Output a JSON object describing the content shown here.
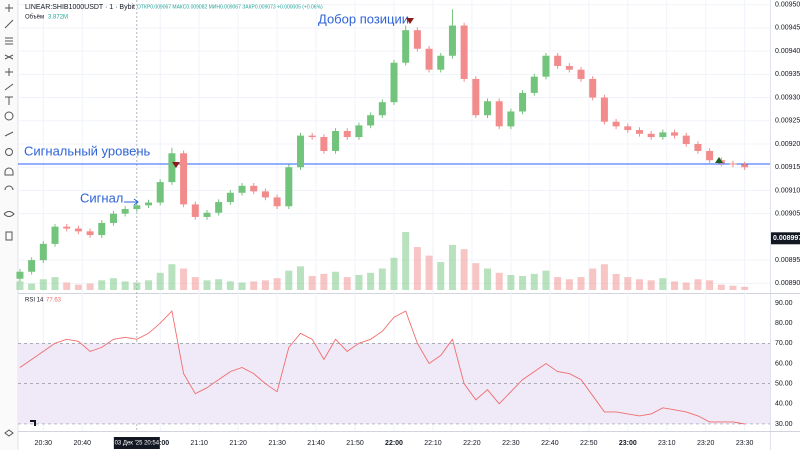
{
  "chart_data": {
    "type": "candlestick",
    "symbol": "LINEAR:SHIB1000USDT · 1 · Bybit",
    "ohlc_text": "ОТКР0.009067 МАКС0.009082 МИН0.009067 ЗАКР0.009073 +0.000005 (+0.06%)",
    "volume_name": "Объём",
    "volume_label": "3.872M",
    "annotations": [
      "Добор позиции",
      "Сигнальный уровень",
      "Сигнал"
    ],
    "signal_level": 0.009157,
    "signal_color": "#2962ff",
    "price_marker": {
      "value": 0.008997,
      "label": "0.008997"
    },
    "crosshair": {
      "value": 1254,
      "label": "03 Дек '25 20:54"
    },
    "up_color": "#72c37b",
    "down_color": "#f28b8b",
    "grid": true,
    "x": [
      1224,
      1227,
      1230,
      1233,
      1236,
      1239,
      1242,
      1245,
      1248,
      1251,
      1254,
      1257,
      1260,
      1263,
      1266,
      1269,
      1272,
      1275,
      1278,
      1281,
      1284,
      1287,
      1290,
      1293,
      1296,
      1299,
      1302,
      1305,
      1308,
      1311,
      1314,
      1317,
      1320,
      1323,
      1326,
      1329,
      1332,
      1335,
      1338,
      1341,
      1344,
      1347,
      1350,
      1353,
      1356,
      1359,
      1362,
      1365,
      1368,
      1371,
      1374,
      1377,
      1380,
      1383,
      1386,
      1389,
      1392,
      1395,
      1398,
      1401,
      1404,
      1407,
      1410
    ],
    "open": [
      0.00891,
      0.008925,
      0.00895,
      0.008985,
      0.009022,
      0.009018,
      0.009012,
      0.009004,
      0.00903,
      0.00905,
      0.00906,
      0.009068,
      0.009074,
      0.009118,
      0.00918,
      0.00907,
      0.009043,
      0.009052,
      0.009075,
      0.009095,
      0.00911,
      0.009098,
      0.009085,
      0.009066,
      0.00915,
      0.009218,
      0.009215,
      0.009185,
      0.009228,
      0.009215,
      0.00924,
      0.009262,
      0.00929,
      0.009375,
      0.009445,
      0.009405,
      0.00936,
      0.00939,
      0.009455,
      0.00934,
      0.009262,
      0.009292,
      0.009238,
      0.00927,
      0.00931,
      0.009345,
      0.00939,
      0.009368,
      0.00936,
      0.00934,
      0.0093,
      0.009248,
      0.009238,
      0.00923,
      0.009222,
      0.009215,
      0.009225,
      0.009218,
      0.0092,
      0.009185,
      0.009165,
      0.009158,
      0.009156
    ],
    "high": [
      0.008931,
      0.008956,
      0.008991,
      0.009028,
      0.009028,
      0.009024,
      0.009018,
      0.009036,
      0.009056,
      0.009066,
      0.009074,
      0.00908,
      0.009124,
      0.009192,
      0.009186,
      0.009076,
      0.009058,
      0.009081,
      0.009101,
      0.009116,
      0.009116,
      0.009104,
      0.009091,
      0.009156,
      0.009224,
      0.009224,
      0.009221,
      0.009234,
      0.009234,
      0.009246,
      0.009268,
      0.009296,
      0.009381,
      0.009455,
      0.009451,
      0.009411,
      0.009396,
      0.00949,
      0.009461,
      0.009346,
      0.009298,
      0.009298,
      0.009276,
      0.009316,
      0.009351,
      0.009396,
      0.009396,
      0.009374,
      0.009366,
      0.009346,
      0.009306,
      0.009254,
      0.009244,
      0.009236,
      0.009228,
      0.009231,
      0.009231,
      0.009224,
      0.009206,
      0.009191,
      0.009171,
      0.009164,
      0.009162
    ],
    "low": [
      0.008904,
      0.008919,
      0.008944,
      0.008979,
      0.009012,
      0.009006,
      0.008998,
      0.008998,
      0.009024,
      0.009044,
      0.009054,
      0.009062,
      0.009068,
      0.009112,
      0.009064,
      0.009037,
      0.009037,
      0.009046,
      0.009069,
      0.009089,
      0.009092,
      0.009079,
      0.00906,
      0.00906,
      0.009144,
      0.009209,
      0.009179,
      0.009179,
      0.009209,
      0.009209,
      0.009234,
      0.009256,
      0.009284,
      0.009369,
      0.009399,
      0.009354,
      0.009354,
      0.009384,
      0.009334,
      0.009256,
      0.009256,
      0.009232,
      0.009232,
      0.009264,
      0.009304,
      0.009339,
      0.009362,
      0.009354,
      0.009334,
      0.009294,
      0.009242,
      0.009232,
      0.009224,
      0.009216,
      0.009209,
      0.009209,
      0.009212,
      0.009194,
      0.009179,
      0.009159,
      0.009152,
      0.00915,
      0.009144
    ],
    "close": [
      0.008925,
      0.00895,
      0.008985,
      0.009022,
      0.009018,
      0.009012,
      0.009004,
      0.00903,
      0.00905,
      0.00906,
      0.009068,
      0.009074,
      0.009118,
      0.00918,
      0.00907,
      0.009043,
      0.009052,
      0.009075,
      0.009095,
      0.00911,
      0.009098,
      0.009085,
      0.009066,
      0.00915,
      0.009218,
      0.009215,
      0.009185,
      0.009228,
      0.009215,
      0.00924,
      0.009262,
      0.00929,
      0.009375,
      0.009445,
      0.009405,
      0.00936,
      0.00939,
      0.009455,
      0.00934,
      0.009262,
      0.009292,
      0.009238,
      0.00927,
      0.00931,
      0.009345,
      0.00939,
      0.009368,
      0.00936,
      0.00934,
      0.0093,
      0.009248,
      0.009238,
      0.00923,
      0.009222,
      0.009215,
      0.009225,
      0.009218,
      0.0092,
      0.009185,
      0.009165,
      0.009158,
      0.009156,
      0.00915
    ],
    "volume": [
      0.8,
      0.6,
      1.0,
      1.2,
      0.7,
      0.5,
      0.6,
      0.9,
      1.1,
      0.8,
      0.7,
      0.9,
      1.6,
      2.4,
      2.0,
      1.2,
      0.9,
      1.0,
      0.8,
      0.7,
      0.8,
      0.9,
      1.1,
      1.8,
      2.2,
      1.3,
      1.5,
      1.7,
      1.2,
      1.4,
      1.6,
      2.0,
      3.0,
      5.4,
      4.0,
      3.2,
      2.6,
      4.2,
      3.8,
      2.5,
      2.0,
      1.6,
      1.4,
      1.3,
      1.5,
      1.8,
      1.2,
      1.0,
      1.2,
      2.0,
      2.4,
      1.5,
      1.2,
      1.0,
      0.9,
      1.1,
      0.8,
      0.7,
      1.0,
      0.9,
      0.5,
      0.4,
      0.3
    ],
    "xlim": [
      1223.5,
      1416.5
    ],
    "xticks": [
      {
        "value": 1230,
        "label": "20:30"
      },
      {
        "value": 1240,
        "label": "20:40"
      },
      {
        "value": 1260,
        "label": "21:00"
      },
      {
        "value": 1270,
        "label": "21:10"
      },
      {
        "value": 1280,
        "label": "21:20"
      },
      {
        "value": 1290,
        "label": "21:30"
      },
      {
        "value": 1300,
        "label": "21:40"
      },
      {
        "value": 1310,
        "label": "21:50"
      },
      {
        "value": 1320,
        "label": "22:00"
      },
      {
        "value": 1330,
        "label": "22:10"
      },
      {
        "value": 1340,
        "label": "22:20"
      },
      {
        "value": 1350,
        "label": "22:30"
      },
      {
        "value": 1360,
        "label": "22:40"
      },
      {
        "value": 1370,
        "label": "22:50"
      },
      {
        "value": 1380,
        "label": "23:00"
      },
      {
        "value": 1390,
        "label": "23:10"
      },
      {
        "value": 1400,
        "label": "23:20"
      },
      {
        "value": 1410,
        "label": "23:30"
      }
    ],
    "ylim": [
      0.00889,
      0.00951
    ],
    "yticks": [
      {
        "value": 0.0089,
        "label": "0.008900"
      },
      {
        "value": 0.00895,
        "label": "0.008950"
      },
      {
        "value": 0.00905,
        "label": "0.009050"
      },
      {
        "value": 0.0091,
        "label": "0.009100"
      },
      {
        "value": 0.00915,
        "label": "0.009150"
      },
      {
        "value": 0.0092,
        "label": "0.009200"
      },
      {
        "value": 0.00925,
        "label": "0.009250"
      },
      {
        "value": 0.0093,
        "label": "0.009300"
      },
      {
        "value": 0.00935,
        "label": "0.009350"
      },
      {
        "value": 0.0094,
        "label": "0.009400"
      },
      {
        "value": 0.00945,
        "label": "0.009450"
      },
      {
        "value": 0.0095,
        "label": "0.009500"
      }
    ],
    "rsi": {
      "name": "RSI 14",
      "value_label": "77.63",
      "color": "#f26d6d",
      "band_color": "#efe9f8",
      "values": [
        58,
        62,
        66,
        70,
        72,
        71,
        66,
        68,
        72,
        73,
        72,
        75,
        80,
        86,
        55,
        45,
        48,
        52,
        56,
        58,
        55,
        50,
        46,
        68,
        75,
        72,
        62,
        72,
        66,
        70,
        72,
        76,
        83,
        86,
        70,
        60,
        64,
        72,
        50,
        42,
        47,
        40,
        46,
        52,
        56,
        60,
        56,
        55,
        52,
        44,
        36,
        36,
        35,
        34,
        35,
        38,
        37,
        36,
        34,
        31,
        31,
        31,
        30
      ],
      "band": [
        30,
        70
      ],
      "dashed": [
        30,
        50,
        70
      ],
      "ylim": [
        27,
        93
      ],
      "yticks": [
        {
          "value": 30,
          "label": "30.00"
        },
        {
          "value": 40,
          "label": "40.00"
        },
        {
          "value": 50,
          "label": "50.00"
        },
        {
          "value": 60,
          "label": "60.00"
        },
        {
          "value": 70,
          "label": "70.00"
        },
        {
          "value": 80,
          "label": "80.00"
        },
        {
          "value": 90,
          "label": "90.00"
        }
      ]
    }
  }
}
